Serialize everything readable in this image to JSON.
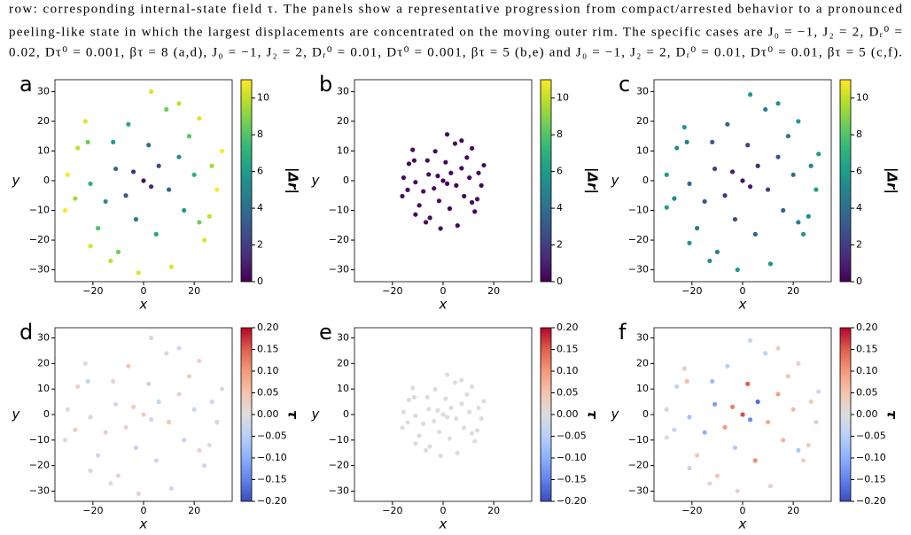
{
  "caption": [
    "row: corresponding internal-state field τ. The panels show a representative progression from compact/arrested behavior to a pronounced",
    "peeling-like state in which the largest displacements are concentrated on the moving outer rim. The specific cases are J₀ = −1, J₂ = 2, Dᵣ⁰ =",
    "0.02, Dτ⁰ = 0.001, βτ = 8 (a,d), J₀ = −1, J₂ = 2, Dᵣ⁰ = 0.01, Dτ⁰ = 0.001, βτ = 5 (b,e) and J₀ = −1, J₂ = 2, Dᵣ⁰ = 0.01, Dτ⁰ = 0.01, βτ = 5 (c,f)."
  ],
  "chart_data": [
    {
      "type": "scatter",
      "panel_label": "a",
      "xlabel": "x",
      "ylabel": "y",
      "xlim": [
        -35,
        35
      ],
      "ylim": [
        -34,
        34
      ],
      "xticks": [
        {
          "value": -20,
          "label": "−20"
        },
        0,
        20
      ],
      "yticks": [
        {
          "value": -30,
          "label": "−30"
        },
        {
          "value": -20,
          "label": "−20"
        },
        {
          "value": -10,
          "label": "−10"
        },
        0,
        10,
        20,
        30
      ],
      "colorbar": {
        "label": "|Δr|",
        "colormap": "viridis",
        "lim": [
          0,
          11
        ],
        "ticks": [
          0,
          2,
          4,
          6,
          8,
          10
        ]
      },
      "x": [
        0,
        3,
        -4,
        6,
        -7,
        10,
        -11,
        2,
        -3,
        14,
        -15,
        16,
        -12,
        5,
        -6,
        20,
        -21,
        18,
        -18,
        22,
        -22,
        9,
        -10,
        27,
        -27,
        26,
        -26,
        14,
        -13,
        3,
        -2,
        29,
        -30,
        22,
        -21,
        24,
        -23,
        31,
        -31,
        11
      ],
      "y": [
        0,
        -2,
        3,
        5,
        -5,
        -3,
        4,
        12,
        -13,
        8,
        -7,
        -10,
        13,
        -18,
        19,
        2,
        -1,
        15,
        -16,
        -14,
        13,
        24,
        -24,
        5,
        -6,
        -12,
        11,
        26,
        -27,
        30,
        -31,
        -3,
        2,
        21,
        -22,
        -20,
        20,
        10,
        -10,
        -29
      ],
      "c": [
        0.5,
        1.2,
        1.5,
        2.5,
        3,
        3.5,
        4,
        4,
        4.5,
        5.5,
        5.5,
        6,
        6,
        6.5,
        6.5,
        7,
        7,
        8,
        8,
        8.5,
        8.5,
        8.5,
        8.5,
        9.5,
        9.5,
        10,
        10,
        10,
        10,
        10.5,
        10.5,
        11,
        11,
        10.5,
        10.5,
        10.5,
        10.5,
        11,
        11,
        10.5
      ]
    },
    {
      "type": "scatter",
      "panel_label": "b",
      "xlabel": "x",
      "ylabel": "y",
      "xlim": [
        -35,
        35
      ],
      "ylim": [
        -34,
        34
      ],
      "xticks": [
        {
          "value": -20,
          "label": "−20"
        },
        0,
        20
      ],
      "yticks": [
        {
          "value": -30,
          "label": "−30"
        },
        {
          "value": -20,
          "label": "−20"
        },
        {
          "value": -10,
          "label": "−10"
        },
        0,
        10,
        20,
        30
      ],
      "colorbar": {
        "label": "|Δr|",
        "colormap": "viridis",
        "lim": [
          0,
          11
        ],
        "ticks": [
          0,
          2,
          4,
          6,
          8,
          10
        ]
      },
      "x": [
        0,
        1.6,
        -2.1,
        3.1,
        -3.6,
        5.2,
        -5.7,
        1,
        -1.6,
        7.3,
        -7.8,
        8.3,
        -6.2,
        2.6,
        -3.1,
        10.4,
        -10.9,
        9.4,
        -9.4,
        11.4,
        -11.4,
        4.7,
        -5.2,
        14,
        -14,
        13.5,
        -13.5,
        7.3,
        -6.8,
        1.6,
        -1,
        15.1,
        -15.6,
        11.4,
        -10.9,
        12.5,
        -12,
        16.1,
        -16.1,
        5.7
      ],
      "y": [
        0,
        -1,
        1.6,
        2.6,
        -2.6,
        -1.6,
        2.1,
        6.2,
        -6.8,
        4.2,
        -3.6,
        -5.2,
        6.8,
        -9.4,
        9.9,
        1,
        -0.5,
        7.8,
        -8.3,
        -7.3,
        6.8,
        12.5,
        -12.5,
        2.6,
        -3.1,
        -6.2,
        5.7,
        13.5,
        -14,
        15.6,
        -16.1,
        -1.6,
        1,
        10.9,
        -11.4,
        -10.4,
        10.4,
        5.2,
        -5.2,
        -15.1
      ],
      "c": [
        0.2,
        0.2,
        0.3,
        0.2,
        0.3,
        0.2,
        0.3,
        0.2,
        0.3,
        0.2,
        0.3,
        0.2,
        0.3,
        0.2,
        0.3,
        0.2,
        0.3,
        0.3,
        0.3,
        0.3,
        0.3,
        0.3,
        0.3,
        0.3,
        0.3,
        0.3,
        0.3,
        0.3,
        0.3,
        0.3,
        0.3,
        0.3,
        0.3,
        0.3,
        0.3,
        0.3,
        0.3,
        0.3,
        0.3,
        0.3
      ]
    },
    {
      "type": "scatter",
      "panel_label": "c",
      "xlabel": "x",
      "ylabel": "y",
      "xlim": [
        -35,
        35
      ],
      "ylim": [
        -34,
        34
      ],
      "xticks": [
        {
          "value": -20,
          "label": "−20"
        },
        0,
        20
      ],
      "yticks": [
        {
          "value": -30,
          "label": "−30"
        },
        {
          "value": -20,
          "label": "−20"
        },
        {
          "value": -10,
          "label": "−10"
        },
        0,
        10,
        20,
        30
      ],
      "colorbar": {
        "label": "|Δr|",
        "colormap": "viridis",
        "lim": [
          0,
          11
        ],
        "ticks": [
          0,
          2,
          4,
          6,
          8,
          10
        ]
      },
      "x": [
        0,
        3,
        -4,
        6,
        -7,
        10,
        -11,
        2,
        -3,
        14,
        -15,
        16,
        -12,
        5,
        -6,
        20,
        -21,
        18,
        -18,
        22,
        -22,
        9,
        -10,
        27,
        -27,
        26,
        -26,
        14,
        -13,
        3,
        -2,
        29,
        -30,
        22,
        -21,
        24,
        -23,
        30,
        -30,
        11
      ],
      "y": [
        0,
        -2,
        3,
        5,
        -5,
        -3,
        4,
        12,
        -13,
        8,
        -7,
        -10,
        13,
        -18,
        19,
        2,
        -1,
        15,
        -16,
        -14,
        13,
        24,
        -24,
        5,
        -6,
        -12,
        11,
        26,
        -27,
        29,
        -30,
        -3,
        2,
        20,
        -21,
        -18,
        18,
        9,
        -9,
        -28
      ],
      "c": [
        0.3,
        0.7,
        0.8,
        1.4,
        1.7,
        1.9,
        2.2,
        2.2,
        2.5,
        3,
        3,
        3.3,
        3.3,
        3.6,
        3.6,
        3.9,
        3.9,
        4.4,
        4.4,
        4.7,
        4.7,
        4.7,
        4.7,
        5.2,
        5.2,
        5.5,
        5.5,
        5.5,
        5.5,
        5.8,
        5.8,
        6,
        6,
        5.8,
        5.8,
        5.8,
        5.8,
        6,
        6,
        5.8
      ]
    },
    {
      "type": "scatter",
      "panel_label": "d",
      "xlabel": "x",
      "ylabel": "y",
      "xlim": [
        -35,
        35
      ],
      "ylim": [
        -34,
        34
      ],
      "xticks": [
        {
          "value": -20,
          "label": "−20"
        },
        0,
        20
      ],
      "yticks": [
        {
          "value": -30,
          "label": "−30"
        },
        {
          "value": -20,
          "label": "−20"
        },
        {
          "value": -10,
          "label": "−10"
        },
        0,
        10,
        20,
        30
      ],
      "colorbar": {
        "label": "τ",
        "colormap": "coolwarm",
        "lim": [
          -0.2,
          0.2
        ],
        "ticks": [
          {
            "value": -0.2,
            "label": "−0.20"
          },
          {
            "value": -0.15,
            "label": "−0.15"
          },
          {
            "value": -0.1,
            "label": "−0.10"
          },
          {
            "value": -0.05,
            "label": "−0.05"
          },
          {
            "value": 0,
            "label": "0.00"
          },
          {
            "value": 0.05,
            "label": "0.05"
          },
          {
            "value": 0.1,
            "label": "0.10"
          },
          {
            "value": 0.15,
            "label": "0.15"
          },
          {
            "value": 0.2,
            "label": "0.20"
          }
        ]
      },
      "x": [
        0,
        3,
        -4,
        6,
        -7,
        10,
        -11,
        2,
        -3,
        14,
        -15,
        16,
        -12,
        5,
        -6,
        20,
        -21,
        18,
        -18,
        22,
        -22,
        9,
        -10,
        27,
        -27,
        26,
        -26,
        14,
        -13,
        3,
        -2,
        29,
        -30,
        22,
        -21,
        24,
        -23,
        31,
        -31,
        11
      ],
      "y": [
        0,
        -2,
        3,
        5,
        -5,
        -3,
        4,
        12,
        -13,
        8,
        -7,
        -10,
        13,
        -18,
        19,
        2,
        -1,
        15,
        -16,
        -14,
        13,
        24,
        -24,
        5,
        -6,
        -12,
        11,
        26,
        -27,
        30,
        -31,
        -3,
        2,
        21,
        -22,
        -20,
        20,
        10,
        -10,
        -29
      ],
      "c": [
        0.03,
        -0.02,
        0.04,
        -0.03,
        0.02,
        0.04,
        -0.02,
        0.03,
        -0.04,
        0.02,
        0.03,
        -0.03,
        0.02,
        -0.02,
        0.04,
        -0.03,
        0.02,
        0.03,
        -0.02,
        0.02,
        -0.03,
        0.01,
        0.02,
        -0.02,
        0.03,
        -0.01,
        0.02,
        -0.02,
        0.01,
        -0.01,
        0.02,
        -0.02,
        0.01,
        0.02,
        -0.01,
        -0.02,
        0.01,
        -0.01,
        0.01,
        -0.02
      ]
    },
    {
      "type": "scatter",
      "panel_label": "e",
      "xlabel": "x",
      "ylabel": "y",
      "xlim": [
        -35,
        35
      ],
      "ylim": [
        -34,
        34
      ],
      "xticks": [
        {
          "value": -20,
          "label": "−20"
        },
        0,
        20
      ],
      "yticks": [
        {
          "value": -30,
          "label": "−30"
        },
        {
          "value": -20,
          "label": "−20"
        },
        {
          "value": -10,
          "label": "−10"
        },
        0,
        10,
        20,
        30
      ],
      "colorbar": {
        "label": "τ",
        "colormap": "coolwarm",
        "lim": [
          -0.2,
          0.2
        ],
        "ticks": [
          {
            "value": -0.2,
            "label": "−0.20"
          },
          {
            "value": -0.15,
            "label": "−0.15"
          },
          {
            "value": -0.1,
            "label": "−0.10"
          },
          {
            "value": -0.05,
            "label": "−0.05"
          },
          {
            "value": 0,
            "label": "0.00"
          },
          {
            "value": 0.05,
            "label": "0.05"
          },
          {
            "value": 0.1,
            "label": "0.10"
          },
          {
            "value": 0.15,
            "label": "0.15"
          },
          {
            "value": 0.2,
            "label": "0.20"
          }
        ]
      },
      "x": [
        0,
        1.6,
        -2.1,
        3.1,
        -3.6,
        5.2,
        -5.7,
        1,
        -1.6,
        7.3,
        -7.8,
        8.3,
        -6.2,
        2.6,
        -3.1,
        10.4,
        -10.9,
        9.4,
        -9.4,
        11.4,
        -11.4,
        4.7,
        -5.2,
        14,
        -14,
        13.5,
        -13.5,
        7.3,
        -6.8,
        1.6,
        -1,
        15.1,
        -15.6,
        11.4,
        -10.9,
        12.5,
        -12,
        16.1,
        -16.1,
        5.7
      ],
      "y": [
        0,
        -1,
        1.6,
        2.6,
        -2.6,
        -1.6,
        2.1,
        6.2,
        -6.8,
        4.2,
        -3.6,
        -5.2,
        6.8,
        -9.4,
        9.9,
        1,
        -0.5,
        7.8,
        -8.3,
        -7.3,
        6.8,
        12.5,
        -12.5,
        2.6,
        -3.1,
        -6.2,
        5.7,
        13.5,
        -14,
        15.6,
        -16.1,
        -1.6,
        1,
        10.9,
        -11.4,
        -10.4,
        10.4,
        5.2,
        -5.2,
        -15.1
      ],
      "c": [
        0,
        0,
        0,
        0,
        0,
        0,
        0,
        0,
        0,
        0,
        0,
        0,
        0,
        0,
        0,
        0,
        0,
        0,
        0,
        0,
        0,
        0,
        0,
        0,
        0,
        0,
        0,
        0,
        0,
        0,
        0,
        0,
        0,
        0,
        0,
        0,
        0,
        0,
        0,
        0
      ]
    },
    {
      "type": "scatter",
      "panel_label": "f",
      "xlabel": "x",
      "ylabel": "y",
      "xlim": [
        -35,
        35
      ],
      "ylim": [
        -34,
        34
      ],
      "xticks": [
        {
          "value": -20,
          "label": "−20"
        },
        0,
        20
      ],
      "yticks": [
        {
          "value": -30,
          "label": "−30"
        },
        {
          "value": -20,
          "label": "−20"
        },
        {
          "value": -10,
          "label": "−10"
        },
        0,
        10,
        20,
        30
      ],
      "colorbar": {
        "label": "τ",
        "colormap": "coolwarm",
        "lim": [
          -0.2,
          0.2
        ],
        "ticks": [
          {
            "value": -0.2,
            "label": "−0.20"
          },
          {
            "value": -0.15,
            "label": "−0.15"
          },
          {
            "value": -0.1,
            "label": "−0.10"
          },
          {
            "value": -0.05,
            "label": "−0.05"
          },
          {
            "value": 0,
            "label": "0.00"
          },
          {
            "value": 0.05,
            "label": "0.05"
          },
          {
            "value": 0.1,
            "label": "0.10"
          },
          {
            "value": 0.15,
            "label": "0.15"
          },
          {
            "value": 0.2,
            "label": "0.20"
          }
        ]
      },
      "x": [
        0,
        3,
        -4,
        6,
        -7,
        10,
        -11,
        2,
        -3,
        14,
        -15,
        16,
        -12,
        5,
        -6,
        20,
        -21,
        18,
        -18,
        22,
        -22,
        9,
        -10,
        27,
        -27,
        26,
        -26,
        14,
        -13,
        3,
        -2,
        29,
        -30,
        22,
        -21,
        24,
        -23,
        30,
        -30,
        11
      ],
      "y": [
        0,
        -2,
        3,
        5,
        -5,
        -3,
        4,
        12,
        -13,
        8,
        -7,
        -10,
        13,
        -18,
        19,
        2,
        -1,
        15,
        -16,
        -14,
        13,
        24,
        -24,
        5,
        -6,
        -12,
        11,
        26,
        -27,
        29,
        -30,
        -3,
        2,
        20,
        -21,
        -18,
        18,
        9,
        -9,
        -28
      ],
      "c": [
        0.16,
        -0.14,
        0.12,
        -0.17,
        0.1,
        0.08,
        -0.12,
        0.15,
        -0.06,
        0.09,
        -0.1,
        0.07,
        -0.08,
        0.11,
        -0.05,
        0.06,
        -0.07,
        0.05,
        0.04,
        -0.06,
        0.06,
        -0.04,
        0.05,
        0.04,
        -0.03,
        0.03,
        -0.04,
        0.03,
        0.02,
        -0.03,
        0.02,
        0.03,
        -0.02,
        0.02,
        -0.03,
        0.02,
        0.03,
        -0.02,
        0.01,
        0.02
      ]
    }
  ]
}
